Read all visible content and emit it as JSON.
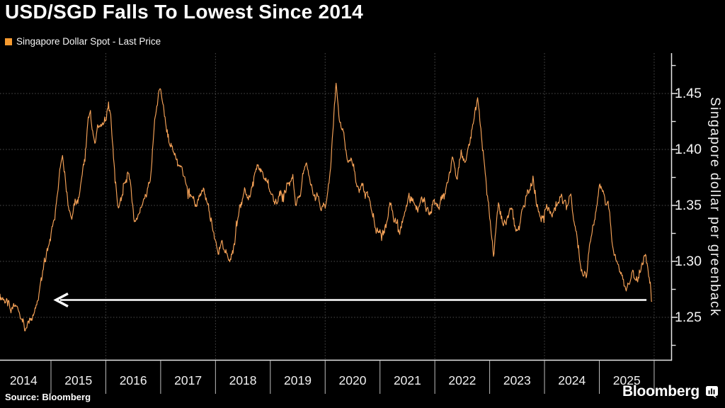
{
  "header": {
    "title": "USD/SGD Falls To Lowest Since 2014"
  },
  "legend": {
    "label": "Singapore Dollar Spot - Last Price",
    "swatch_color": "#F79B30"
  },
  "footer": {
    "source_label": "Source:",
    "source_value": "Bloomberg",
    "brand": "Bloomberg"
  },
  "chart_data": {
    "type": "line",
    "title": "USD/SGD Falls To Lowest Since 2014",
    "grid": "dotted",
    "legend_position": "top-left",
    "colors": {
      "background": "#000000",
      "line": "#F7A358",
      "grid": "#4E4E4E",
      "axis": "#E8E8E8",
      "separator": "#BDBDBD",
      "arrow": "#FFFFFF",
      "text": "#F2F2F2"
    },
    "x_axis": {
      "years": [
        "2014",
        "2015",
        "2016",
        "2017",
        "2018",
        "2019",
        "2020",
        "2021",
        "2022",
        "2023",
        "2024",
        "2025"
      ],
      "boundary_years": [
        2015,
        2016,
        2017,
        2018,
        2019,
        2020,
        2021,
        2022,
        2023,
        2024,
        2025,
        2026
      ],
      "gridline_years": [
        2016,
        2018,
        2020,
        2022,
        2024,
        2026
      ],
      "start": 2014.07,
      "end": 2026.3
    },
    "y_axis": {
      "label": "Singapore dollar per greenback",
      "ticks": [
        {
          "v": 1.45,
          "label": "1.45"
        },
        {
          "v": 1.4,
          "label": "1.40"
        },
        {
          "v": 1.35,
          "label": "1.35"
        },
        {
          "v": 1.3,
          "label": "1.30"
        },
        {
          "v": 1.25,
          "label": "1.25"
        }
      ],
      "minor_ticks": [
        1.475,
        1.425,
        1.375,
        1.325,
        1.275,
        1.225
      ],
      "range": [
        1.212,
        1.487
      ]
    },
    "annotation_arrow": {
      "price": 1.2655,
      "t_head": 2015.09,
      "t_tail": 2025.86
    },
    "noise": {
      "seed": 7,
      "jitter": 0.0035,
      "step": 0.01
    },
    "series": [
      {
        "name": "Singapore Dollar Spot - Last Price",
        "last_value": 1.2646,
        "anchors": [
          [
            2014.07,
            1.271
          ],
          [
            2014.12,
            1.266
          ],
          [
            2014.2,
            1.262
          ],
          [
            2014.28,
            1.255
          ],
          [
            2014.36,
            1.252
          ],
          [
            2014.44,
            1.247
          ],
          [
            2014.5,
            1.243
          ],
          [
            2014.55,
            1.24
          ],
          [
            2014.6,
            1.247
          ],
          [
            2014.68,
            1.251
          ],
          [
            2014.76,
            1.263
          ],
          [
            2014.84,
            1.285
          ],
          [
            2014.92,
            1.308
          ],
          [
            2015.0,
            1.328
          ],
          [
            2015.08,
            1.35
          ],
          [
            2015.16,
            1.381
          ],
          [
            2015.21,
            1.392
          ],
          [
            2015.27,
            1.366
          ],
          [
            2015.33,
            1.342
          ],
          [
            2015.38,
            1.331
          ],
          [
            2015.44,
            1.349
          ],
          [
            2015.5,
            1.356
          ],
          [
            2015.56,
            1.379
          ],
          [
            2015.62,
            1.401
          ],
          [
            2015.68,
            1.424
          ],
          [
            2015.72,
            1.433
          ],
          [
            2015.76,
            1.415
          ],
          [
            2015.8,
            1.398
          ],
          [
            2015.85,
            1.413
          ],
          [
            2015.92,
            1.417
          ],
          [
            2016.0,
            1.43
          ],
          [
            2016.05,
            1.444
          ],
          [
            2016.1,
            1.424
          ],
          [
            2016.17,
            1.372
          ],
          [
            2016.24,
            1.347
          ],
          [
            2016.3,
            1.361
          ],
          [
            2016.36,
            1.374
          ],
          [
            2016.42,
            1.383
          ],
          [
            2016.47,
            1.356
          ],
          [
            2016.52,
            1.341
          ],
          [
            2016.6,
            1.34
          ],
          [
            2016.67,
            1.351
          ],
          [
            2016.74,
            1.36
          ],
          [
            2016.82,
            1.381
          ],
          [
            2016.9,
            1.424
          ],
          [
            2016.98,
            1.452
          ],
          [
            2017.04,
            1.437
          ],
          [
            2017.1,
            1.418
          ],
          [
            2017.17,
            1.404
          ],
          [
            2017.24,
            1.398
          ],
          [
            2017.32,
            1.389
          ],
          [
            2017.4,
            1.381
          ],
          [
            2017.48,
            1.372
          ],
          [
            2017.56,
            1.361
          ],
          [
            2017.64,
            1.353
          ],
          [
            2017.72,
            1.359
          ],
          [
            2017.78,
            1.369
          ],
          [
            2017.84,
            1.354
          ],
          [
            2017.92,
            1.341
          ],
          [
            2018.0,
            1.324
          ],
          [
            2018.05,
            1.309
          ],
          [
            2018.12,
            1.317
          ],
          [
            2018.2,
            1.311
          ],
          [
            2018.28,
            1.307
          ],
          [
            2018.36,
            1.328
          ],
          [
            2018.44,
            1.349
          ],
          [
            2018.52,
            1.363
          ],
          [
            2018.6,
            1.367
          ],
          [
            2018.68,
            1.373
          ],
          [
            2018.76,
            1.388
          ],
          [
            2018.84,
            1.379
          ],
          [
            2018.92,
            1.371
          ],
          [
            2019.0,
            1.361
          ],
          [
            2019.08,
            1.352
          ],
          [
            2019.16,
            1.355
          ],
          [
            2019.24,
            1.357
          ],
          [
            2019.32,
            1.371
          ],
          [
            2019.4,
            1.381
          ],
          [
            2019.46,
            1.355
          ],
          [
            2019.54,
            1.361
          ],
          [
            2019.62,
            1.387
          ],
          [
            2019.7,
            1.381
          ],
          [
            2019.78,
            1.365
          ],
          [
            2019.86,
            1.361
          ],
          [
            2019.94,
            1.347
          ],
          [
            2020.02,
            1.353
          ],
          [
            2020.1,
            1.387
          ],
          [
            2020.2,
            1.466
          ],
          [
            2020.26,
            1.429
          ],
          [
            2020.32,
            1.417
          ],
          [
            2020.4,
            1.399
          ],
          [
            2020.48,
            1.392
          ],
          [
            2020.56,
            1.374
          ],
          [
            2020.64,
            1.365
          ],
          [
            2020.72,
            1.361
          ],
          [
            2020.8,
            1.352
          ],
          [
            2020.88,
            1.339
          ],
          [
            2020.96,
            1.326
          ],
          [
            2021.04,
            1.323
          ],
          [
            2021.12,
            1.333
          ],
          [
            2021.2,
            1.347
          ],
          [
            2021.28,
            1.335
          ],
          [
            2021.36,
            1.325
          ],
          [
            2021.44,
            1.343
          ],
          [
            2021.52,
            1.359
          ],
          [
            2021.6,
            1.353
          ],
          [
            2021.68,
            1.349
          ],
          [
            2021.76,
            1.363
          ],
          [
            2021.84,
            1.351
          ],
          [
            2021.92,
            1.349
          ],
          [
            2022.0,
            1.352
          ],
          [
            2022.08,
            1.346
          ],
          [
            2022.16,
            1.359
          ],
          [
            2022.24,
            1.371
          ],
          [
            2022.32,
            1.389
          ],
          [
            2022.4,
            1.377
          ],
          [
            2022.48,
            1.395
          ],
          [
            2022.56,
            1.389
          ],
          [
            2022.64,
            1.409
          ],
          [
            2022.72,
            1.431
          ],
          [
            2022.79,
            1.444
          ],
          [
            2022.86,
            1.405
          ],
          [
            2022.93,
            1.369
          ],
          [
            2023.0,
            1.341
          ],
          [
            2023.07,
            1.305
          ],
          [
            2023.12,
            1.329
          ],
          [
            2023.16,
            1.352
          ],
          [
            2023.24,
            1.333
          ],
          [
            2023.32,
            1.337
          ],
          [
            2023.4,
            1.351
          ],
          [
            2023.48,
            1.329
          ],
          [
            2023.56,
            1.341
          ],
          [
            2023.64,
            1.357
          ],
          [
            2023.72,
            1.367
          ],
          [
            2023.8,
            1.369
          ],
          [
            2023.86,
            1.349
          ],
          [
            2023.93,
            1.331
          ],
          [
            2024.0,
            1.341
          ],
          [
            2024.08,
            1.345
          ],
          [
            2024.16,
            1.349
          ],
          [
            2024.24,
            1.357
          ],
          [
            2024.32,
            1.361
          ],
          [
            2024.4,
            1.349
          ],
          [
            2024.48,
            1.357
          ],
          [
            2024.56,
            1.331
          ],
          [
            2024.64,
            1.301
          ],
          [
            2024.7,
            1.284
          ],
          [
            2024.76,
            1.289
          ],
          [
            2024.84,
            1.319
          ],
          [
            2024.92,
            1.343
          ],
          [
            2025.0,
            1.371
          ],
          [
            2025.06,
            1.359
          ],
          [
            2025.12,
            1.349
          ],
          [
            2025.18,
            1.341
          ],
          [
            2025.24,
            1.317
          ],
          [
            2025.32,
            1.297
          ],
          [
            2025.4,
            1.285
          ],
          [
            2025.48,
            1.273
          ],
          [
            2025.54,
            1.283
          ],
          [
            2025.6,
            1.288
          ],
          [
            2025.66,
            1.279
          ],
          [
            2025.72,
            1.289
          ],
          [
            2025.78,
            1.299
          ],
          [
            2025.84,
            1.307
          ],
          [
            2025.9,
            1.285
          ],
          [
            2025.96,
            1.2646
          ]
        ]
      }
    ]
  }
}
